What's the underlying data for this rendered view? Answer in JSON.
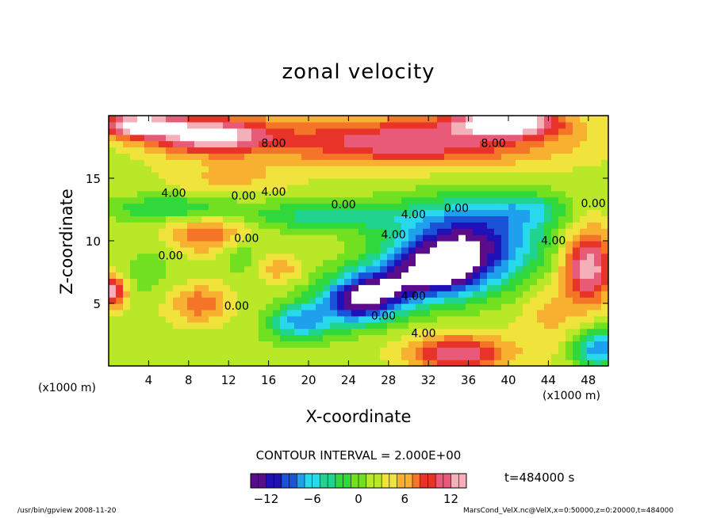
{
  "chart_data": {
    "type": "heatmap",
    "title": "zonal velocity",
    "xlabel": "X-coordinate",
    "ylabel": "Z-coordinate",
    "x_unit": "(x1000 m)",
    "x_ticks": [
      4,
      8,
      12,
      16,
      20,
      24,
      28,
      32,
      36,
      40,
      44,
      48
    ],
    "y_ticks": [
      5,
      10,
      15
    ],
    "xlim": [
      0,
      50
    ],
    "ylim": [
      0,
      20
    ],
    "contour_interval": "CONTOUR INTERVAL = 2.000E+00",
    "contour_labels": [
      {
        "x": 16.5,
        "y": 17.5,
        "text": "8.00"
      },
      {
        "x": 38.5,
        "y": 17.5,
        "text": "8.00"
      },
      {
        "x": 6.5,
        "y": 13.5,
        "text": "4.00"
      },
      {
        "x": 13.5,
        "y": 13.3,
        "text": "0.00"
      },
      {
        "x": 16.5,
        "y": 13.6,
        "text": "4.00"
      },
      {
        "x": 23.5,
        "y": 12.6,
        "text": "0.00"
      },
      {
        "x": 48.5,
        "y": 12.7,
        "text": "0.00"
      },
      {
        "x": 13.8,
        "y": 9.9,
        "text": "0.00"
      },
      {
        "x": 6.2,
        "y": 8.5,
        "text": "0.00"
      },
      {
        "x": 12.8,
        "y": 4.5,
        "text": "0.00"
      },
      {
        "x": 44.5,
        "y": 9.7,
        "text": "4.00"
      },
      {
        "x": 30.5,
        "y": 5.3,
        "text": "4.00"
      },
      {
        "x": 27.5,
        "y": 3.7,
        "text": "0.00"
      },
      {
        "x": 31.5,
        "y": 2.3,
        "text": "4.00"
      },
      {
        "x": 28.5,
        "y": 10.2,
        "text": "4.00"
      },
      {
        "x": 30.5,
        "y": 11.8,
        "text": "4.00"
      },
      {
        "x": 34.8,
        "y": 12.3,
        "text": "0.00"
      }
    ],
    "features": [
      {
        "x": 36,
        "y": 10,
        "value": -14,
        "sx": 7,
        "sy": 3.2
      },
      {
        "x": 33,
        "y": 7.5,
        "value": -13,
        "sx": 5,
        "sy": 2.2
      },
      {
        "x": 27,
        "y": 6,
        "value": -12,
        "sx": 4,
        "sy": 2
      },
      {
        "x": 19,
        "y": 3.5,
        "value": -9,
        "sx": 3,
        "sy": 1.5
      },
      {
        "x": 24,
        "y": 5,
        "value": -10,
        "sx": 3.5,
        "sy": 1.8
      },
      {
        "x": 49,
        "y": 1.5,
        "value": -10,
        "sx": 2.5,
        "sy": 1.5
      },
      {
        "x": 22,
        "y": 12,
        "value": -6,
        "sx": 8,
        "sy": 1.2
      },
      {
        "x": 6,
        "y": 12.7,
        "value": -5,
        "sx": 6,
        "sy": 1
      },
      {
        "x": 42,
        "y": 12.5,
        "value": -5,
        "sx": 4,
        "sy": 1.3
      },
      {
        "x": 13,
        "y": 9,
        "value": -3,
        "sx": 2,
        "sy": 1.5
      },
      {
        "x": 4,
        "y": 7.5,
        "value": -2,
        "sx": 3,
        "sy": 2
      },
      {
        "x": 9,
        "y": 5,
        "value": 6,
        "sx": 3,
        "sy": 1.5
      },
      {
        "x": 10,
        "y": 10.5,
        "value": 6,
        "sx": 4,
        "sy": 1.5
      },
      {
        "x": 17,
        "y": 7.8,
        "value": 4,
        "sx": 2,
        "sy": 1
      },
      {
        "x": 48,
        "y": 8,
        "value": 12,
        "sx": 2.5,
        "sy": 3
      },
      {
        "x": 0.5,
        "y": 6,
        "value": 11,
        "sx": 1.2,
        "sy": 1.3
      },
      {
        "x": 35,
        "y": 1,
        "value": 10,
        "sx": 5,
        "sy": 1.5
      },
      {
        "x": 3,
        "y": 19.3,
        "value": 13,
        "sx": 4,
        "sy": 1
      },
      {
        "x": 10,
        "y": 18.5,
        "value": 12,
        "sx": 6,
        "sy": 1.5
      },
      {
        "x": 40,
        "y": 19.5,
        "value": 14,
        "sx": 5,
        "sy": 1
      },
      {
        "x": 30,
        "y": 18,
        "value": 10,
        "sx": 15,
        "sy": 2
      },
      {
        "x": 12,
        "y": 15,
        "value": 3,
        "sx": 6,
        "sy": 1.2
      },
      {
        "x": 44,
        "y": 4,
        "value": 3,
        "sx": 3,
        "sy": 3
      }
    ],
    "colorbar": {
      "min": -14,
      "max": 14,
      "ticks": [
        -12,
        -6,
        0,
        6,
        12
      ],
      "palette": [
        "#5a0c8c",
        "#1f10b8",
        "#1a52d8",
        "#1fa0ec",
        "#28d8ec",
        "#20d490",
        "#30d83c",
        "#70e020",
        "#b8e828",
        "#f0e43c",
        "#f8b030",
        "#f47428",
        "#e83428",
        "#e85a78",
        "#f4b0b8"
      ]
    },
    "saturation_color": "#ffffff"
  },
  "time_label": "t=484000 s",
  "footer": {
    "left": "/usr/bin/gpview  2008-11-20",
    "right": "MarsCond_VelX.nc@VelX,x=0:50000,z=0:20000,t=484000"
  }
}
